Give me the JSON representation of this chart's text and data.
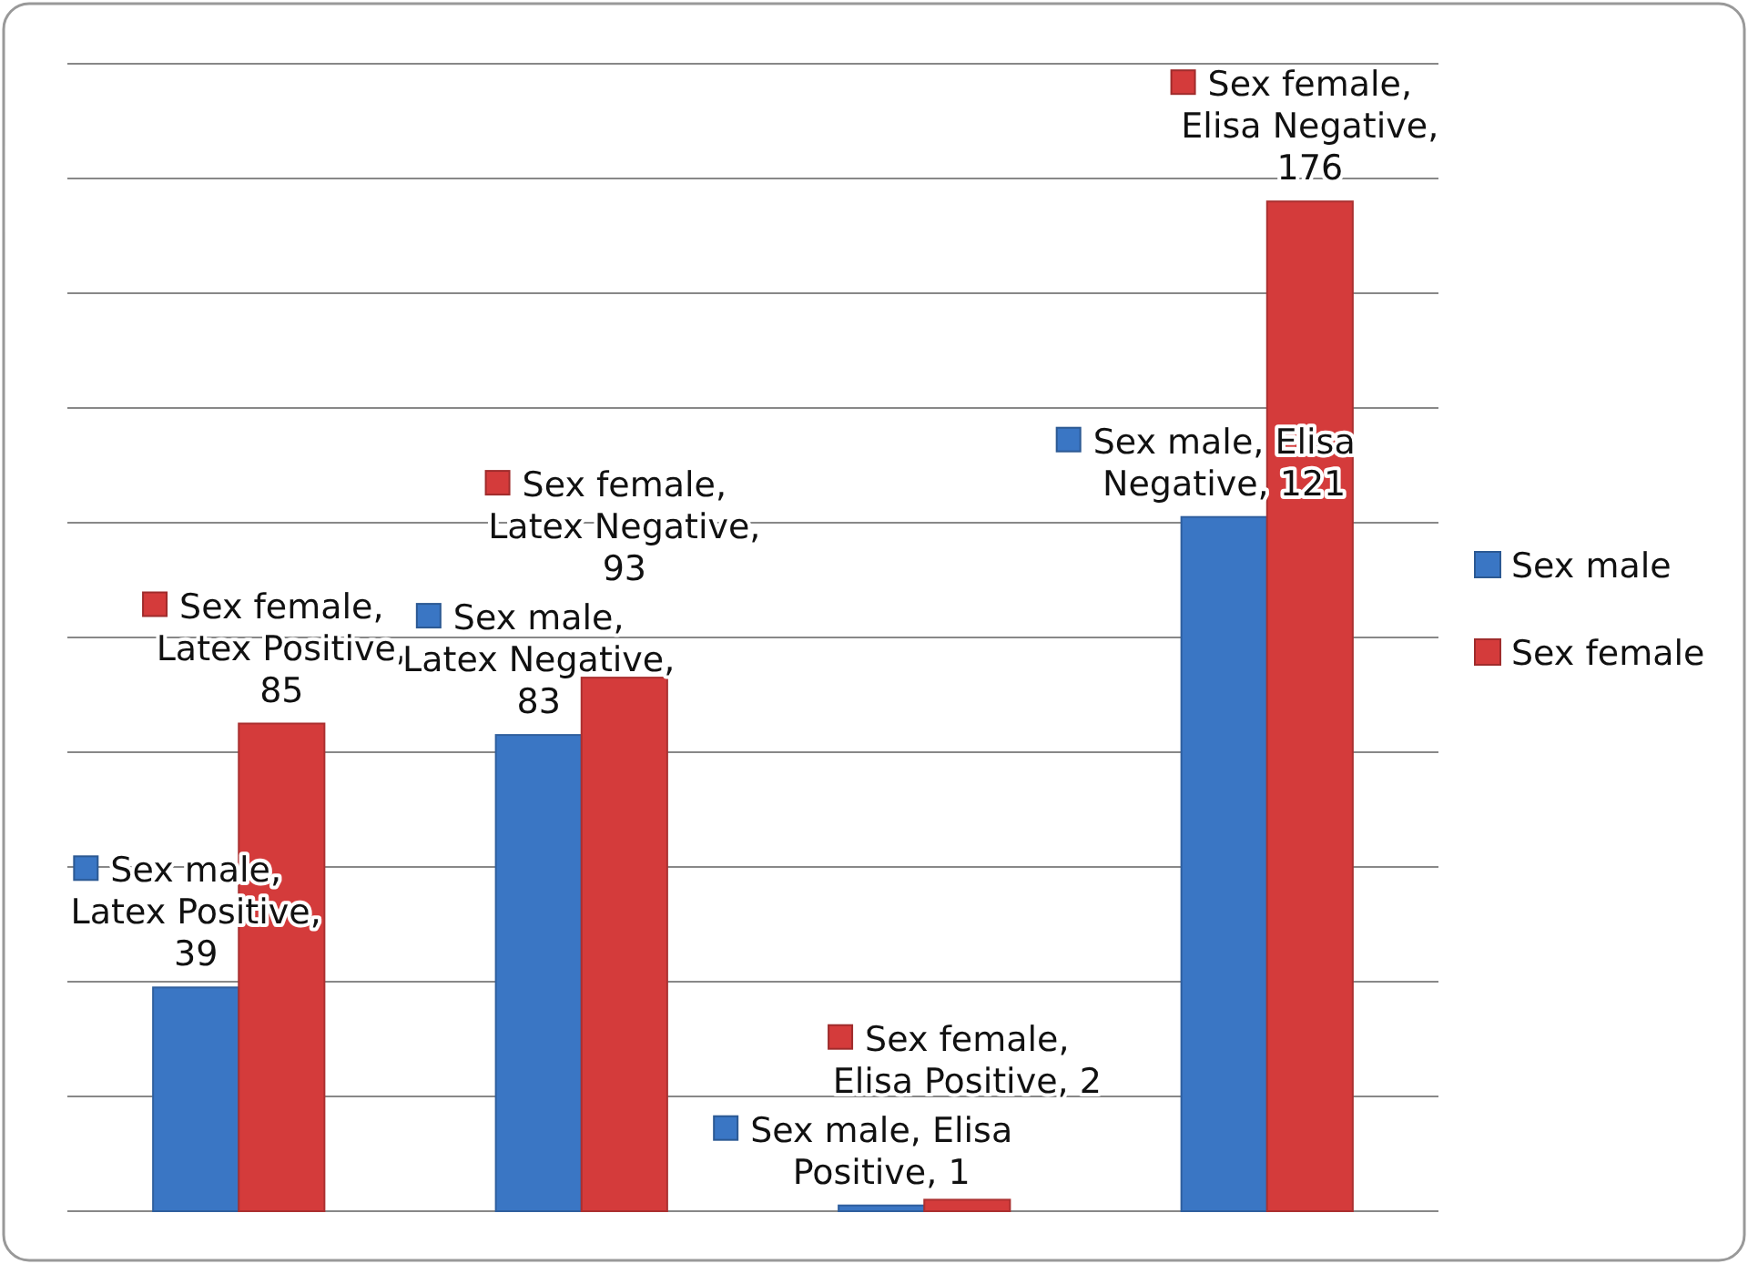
{
  "chart_data": {
    "type": "bar",
    "categories": [
      null,
      null,
      null,
      null
    ],
    "series": [
      {
        "name": "Sex male",
        "color": "#3a76c4",
        "values": [
          39,
          83,
          1,
          121
        ],
        "value_labels": [
          "Sex male, Latex Positive, 39",
          "Sex male, Latex Negative, 83",
          "Sex male, Elisa Positive, 1",
          "Sex male, Elisa Negative, 121"
        ]
      },
      {
        "name": "Sex female",
        "color": "#d43b3b",
        "values": [
          85,
          93,
          2,
          176
        ],
        "value_labels": [
          "Sex female, Latex Positive, 85",
          "Sex female, Latex Negative, 93",
          "Sex female, Elisa Positive, 2",
          "Sex female, Elisa Negative, 176"
        ]
      }
    ],
    "ylim": [
      0,
      200
    ],
    "yticks": [
      {
        "value": 0,
        "label": null
      },
      {
        "value": 20,
        "label": null
      },
      {
        "value": 40,
        "label": null
      },
      {
        "value": 60,
        "label": null
      },
      {
        "value": 80,
        "label": null
      },
      {
        "value": 100,
        "label": null
      },
      {
        "value": 120,
        "label": null
      },
      {
        "value": 140,
        "label": null
      },
      {
        "value": 160,
        "label": null
      },
      {
        "value": 180,
        "label": null
      },
      {
        "value": 200,
        "label": null
      }
    ],
    "grid": "y",
    "legend": "right"
  }
}
